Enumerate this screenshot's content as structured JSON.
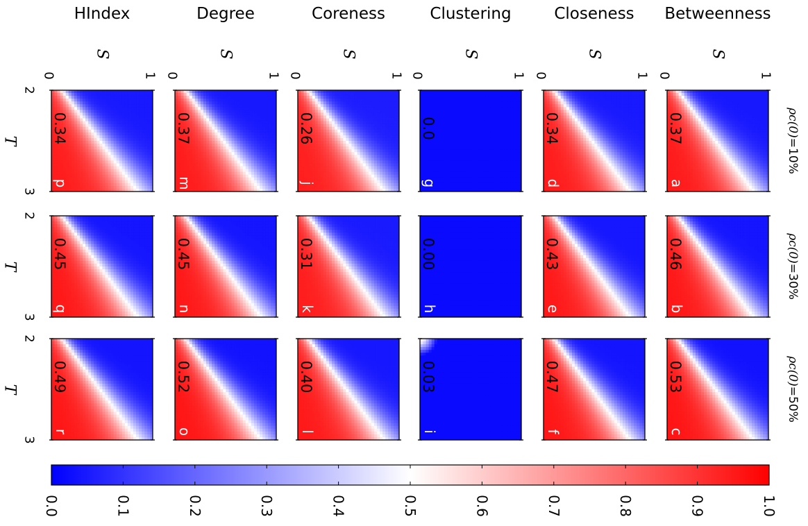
{
  "chart_data": {
    "type": "heatmap",
    "orientation": "rotated 90 degrees clockwise",
    "measures": [
      "Betweenness",
      "Closeness",
      "Clustering",
      "Coreness",
      "Degree",
      "HIndex"
    ],
    "conditions": [
      "ρc(0)=10%",
      "ρc(0)=30%",
      "ρc(0)=50%"
    ],
    "condition_parts": [
      {
        "symbol": "ρc(0)",
        "value": "=10%"
      },
      {
        "symbol": "ρc(0)",
        "value": "=30%"
      },
      {
        "symbol": "ρc(0)",
        "value": "=50%"
      }
    ],
    "xlabel": "T",
    "ylabel": "S",
    "xlim": [
      2,
      3
    ],
    "ylim": [
      0,
      1
    ],
    "xticks": [
      "2",
      "3"
    ],
    "yticks": [
      "0",
      "1"
    ],
    "panels": [
      {
        "letter": "a",
        "measure": "Betweenness",
        "condition": "ρc(0)=10%",
        "value": "0.37"
      },
      {
        "letter": "b",
        "measure": "Betweenness",
        "condition": "ρc(0)=30%",
        "value": "0.46"
      },
      {
        "letter": "c",
        "measure": "Betweenness",
        "condition": "ρc(0)=50%",
        "value": "0.53"
      },
      {
        "letter": "d",
        "measure": "Closeness",
        "condition": "ρc(0)=10%",
        "value": "0.34"
      },
      {
        "letter": "e",
        "measure": "Closeness",
        "condition": "ρc(0)=30%",
        "value": "0.43"
      },
      {
        "letter": "f",
        "measure": "Closeness",
        "condition": "ρc(0)=50%",
        "value": "0.47"
      },
      {
        "letter": "g",
        "measure": "Clustering",
        "condition": "ρc(0)=10%",
        "value": "0.0"
      },
      {
        "letter": "h",
        "measure": "Clustering",
        "condition": "ρc(0)=30%",
        "value": "0.00"
      },
      {
        "letter": "i",
        "measure": "Clustering",
        "condition": "ρc(0)=50%",
        "value": "0.03"
      },
      {
        "letter": "j",
        "measure": "Coreness",
        "condition": "ρc(0)=10%",
        "value": "0.26"
      },
      {
        "letter": "k",
        "measure": "Coreness",
        "condition": "ρc(0)=30%",
        "value": "0.31"
      },
      {
        "letter": "l",
        "measure": "Coreness",
        "condition": "ρc(0)=50%",
        "value": "0.40"
      },
      {
        "letter": "m",
        "measure": "Degree",
        "condition": "ρc(0)=10%",
        "value": "0.37"
      },
      {
        "letter": "n",
        "measure": "Degree",
        "condition": "ρc(0)=30%",
        "value": "0.45"
      },
      {
        "letter": "o",
        "measure": "Degree",
        "condition": "ρc(0)=50%",
        "value": "0.52"
      },
      {
        "letter": "p",
        "measure": "HIndex",
        "condition": "ρc(0)=10%",
        "value": "0.34"
      },
      {
        "letter": "q",
        "measure": "HIndex",
        "condition": "ρc(0)=30%",
        "value": "0.45"
      },
      {
        "letter": "r",
        "measure": "HIndex",
        "condition": "ρc(0)=50%",
        "value": "0.49"
      }
    ],
    "colorbar": {
      "ticks": [
        "0.0",
        "0.1",
        "0.2",
        "0.3",
        "0.4",
        "0.5",
        "0.6",
        "0.7",
        "0.8",
        "0.9",
        "1.0"
      ],
      "range": [
        0,
        1
      ],
      "colormap": "bwr",
      "low_color": "#0000ff",
      "mid_color": "#ffffff",
      "high_color": "#ff0000"
    }
  }
}
